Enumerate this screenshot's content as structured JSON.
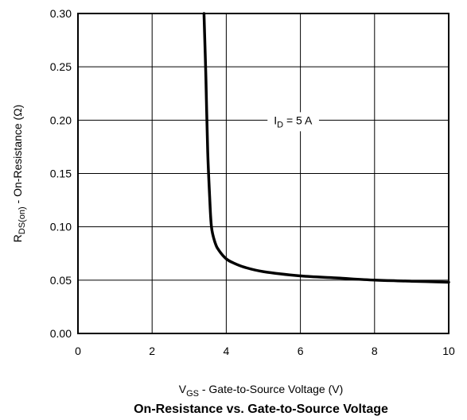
{
  "chart_data": {
    "type": "line",
    "title": "On-Resistance vs. Gate-to-Source Voltage",
    "xlabel": {
      "main": "V",
      "sub": "GS",
      "rest": " - Gate-to-Source Voltage (V)"
    },
    "ylabel": {
      "main": "R",
      "sub": "DS(on)",
      "rest": " - On-Resistance (Ω)"
    },
    "xlim": [
      0,
      10
    ],
    "ylim": [
      0,
      0.3
    ],
    "x_ticks": [
      0,
      2,
      4,
      6,
      8,
      10
    ],
    "y_ticks": [
      0.0,
      0.05,
      0.1,
      0.15,
      0.2,
      0.25,
      0.3
    ],
    "x_tick_labels": [
      "0",
      "2",
      "4",
      "6",
      "8",
      "10"
    ],
    "y_tick_labels": [
      "0.00",
      "0.05",
      "0.10",
      "0.15",
      "0.20",
      "0.25",
      "0.30"
    ],
    "grid": true,
    "annotation": {
      "main": "I",
      "sub": "D",
      "rest": " = 5 A",
      "x": 5.8,
      "y": 0.2
    },
    "series": [
      {
        "x": [
          3.4,
          3.45,
          3.5,
          3.55,
          3.6,
          3.7,
          3.8,
          4.0,
          4.2,
          4.5,
          5.0,
          6.0,
          7.0,
          8.0,
          9.0,
          10.0
        ],
        "y": [
          0.3,
          0.24,
          0.17,
          0.13,
          0.1,
          0.085,
          0.078,
          0.07,
          0.066,
          0.062,
          0.058,
          0.054,
          0.052,
          0.05,
          0.049,
          0.048
        ]
      }
    ],
    "colors": {
      "line": "#000000",
      "grid": "#000000",
      "frame": "#000000"
    }
  }
}
